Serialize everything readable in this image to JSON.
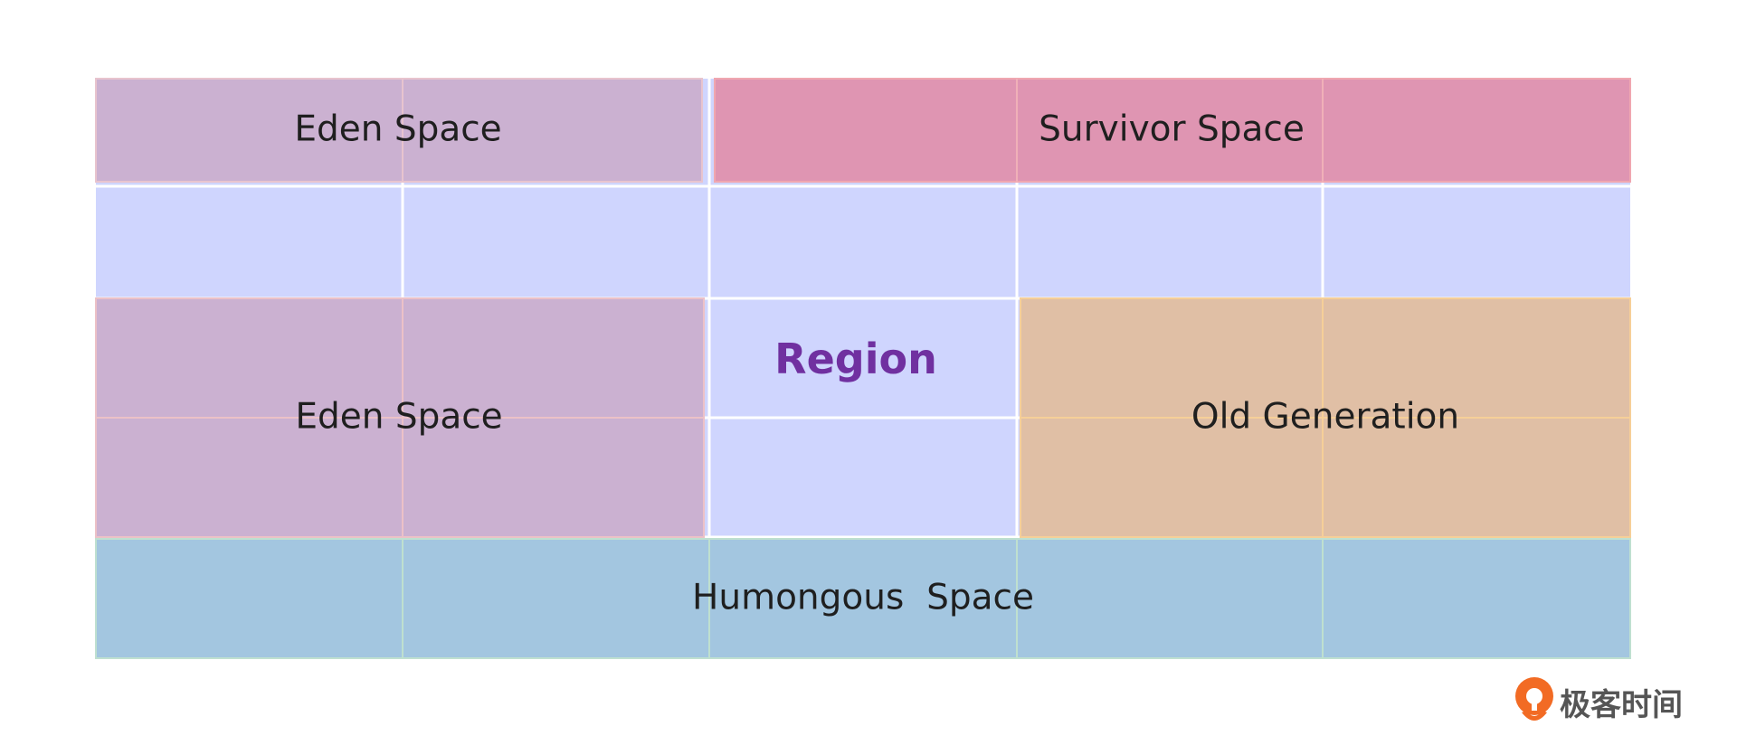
{
  "diagram": {
    "labels": {
      "eden_top": "Eden Space",
      "survivor": "Survivor Space",
      "eden_middle": "Eden Space",
      "region": "Region",
      "old_generation": "Old Generation",
      "humongous": "Humongous  Space"
    },
    "colors": {
      "region_free": "#cfd5fe",
      "eden": "#cbb1d1",
      "survivor": "#df95b2",
      "old_generation": "#e0bfa5",
      "humongous": "#a3c6e0",
      "region_label": "#7030a0",
      "grid_line": "#ffffff"
    }
  },
  "brand": {
    "icon": "geektime-logo-icon",
    "text": "极客时间",
    "color": "#f26b24"
  }
}
